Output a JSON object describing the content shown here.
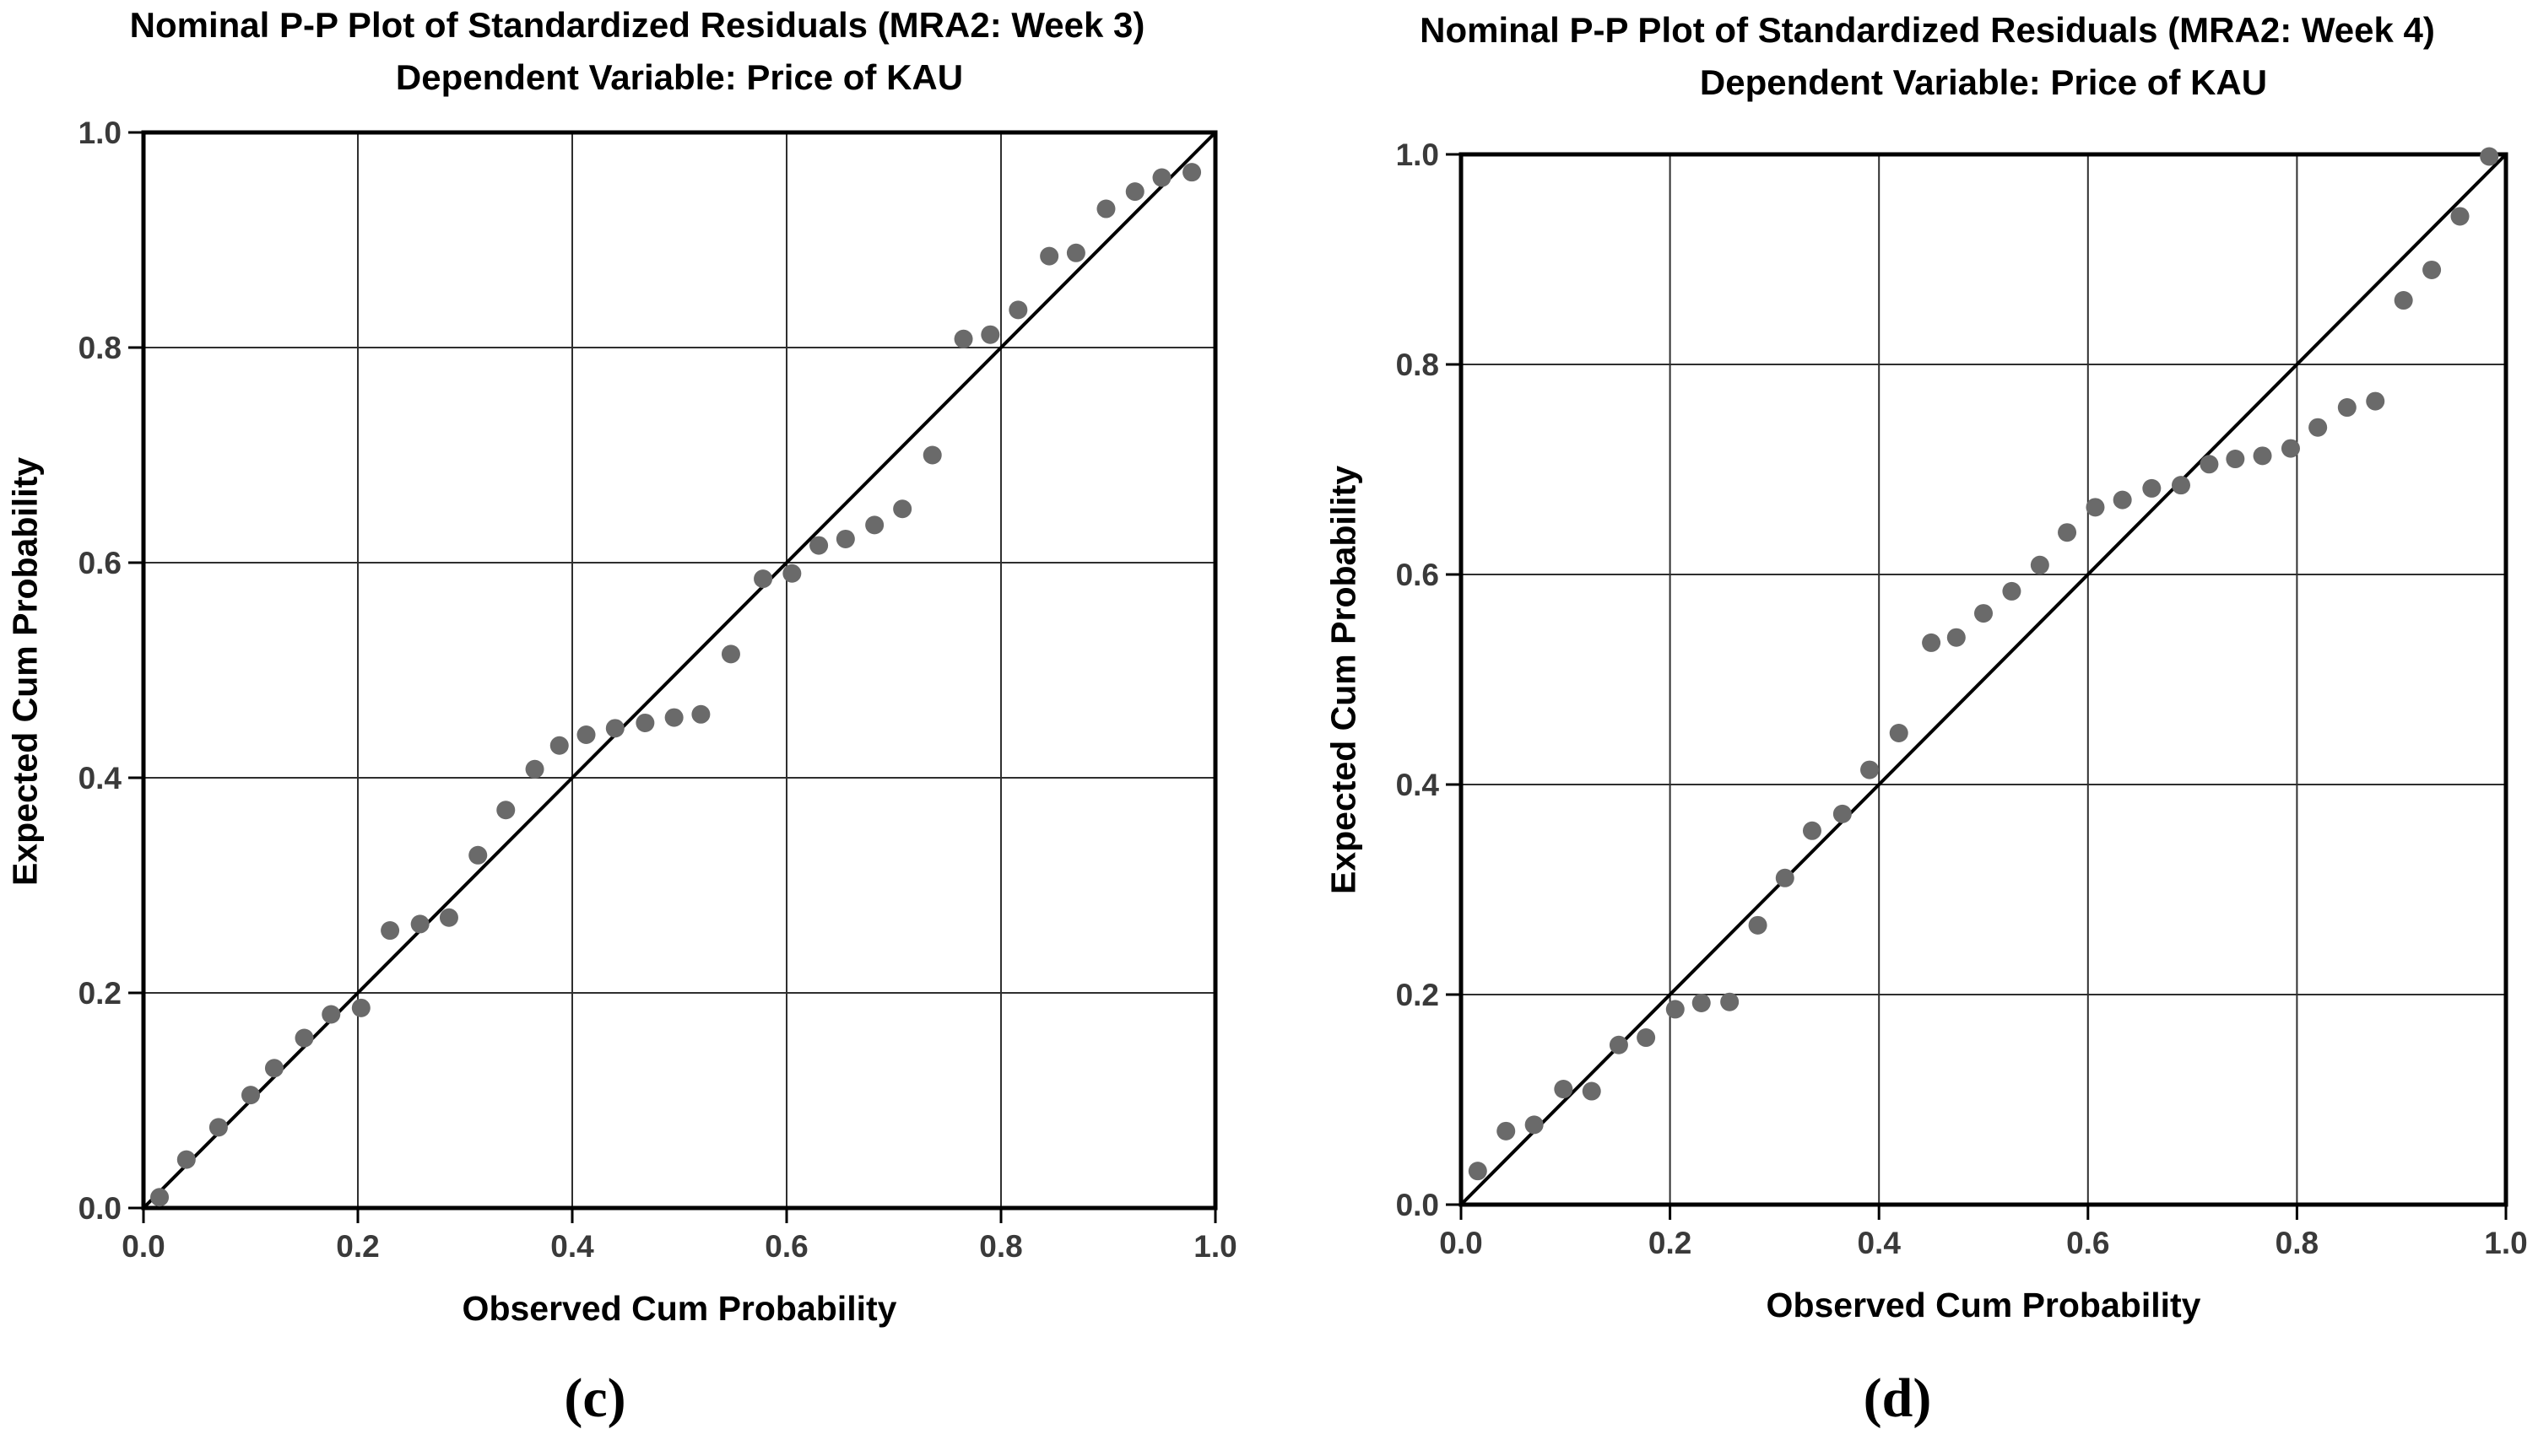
{
  "chart_data": [
    {
      "type": "scatter",
      "title": "Nominal P-P Plot of Standardized Residuals (MRA2: Week 3)",
      "subtitle": "Dependent Variable: Price of KAU",
      "xlabel": "Observed Cum Probability",
      "ylabel": "Expected Cum Probability",
      "caption": "(c)",
      "xlim": [
        0,
        1
      ],
      "ylim": [
        0,
        1
      ],
      "grid": true,
      "tick_values": [
        0,
        0.2,
        0.4,
        0.6,
        0.8,
        1.0
      ],
      "tick_labels": [
        "0.0",
        "0.2",
        "0.4",
        "0.6",
        "0.8",
        "1.0"
      ],
      "reference_line": {
        "x": [
          0,
          1
        ],
        "y": [
          0,
          1
        ]
      },
      "point_color": "#6a6a6a",
      "line_color": "#000000",
      "grid_color": "#2f2f2f",
      "axis_color": "#000000",
      "points": [
        [
          0.015,
          0.01
        ],
        [
          0.04,
          0.045
        ],
        [
          0.07,
          0.075
        ],
        [
          0.1,
          0.105
        ],
        [
          0.122,
          0.13
        ],
        [
          0.15,
          0.158
        ],
        [
          0.175,
          0.18
        ],
        [
          0.203,
          0.186
        ],
        [
          0.23,
          0.258
        ],
        [
          0.258,
          0.264
        ],
        [
          0.285,
          0.27
        ],
        [
          0.312,
          0.328
        ],
        [
          0.338,
          0.37
        ],
        [
          0.365,
          0.408
        ],
        [
          0.388,
          0.43
        ],
        [
          0.413,
          0.44
        ],
        [
          0.44,
          0.446
        ],
        [
          0.468,
          0.451
        ],
        [
          0.495,
          0.456
        ],
        [
          0.52,
          0.459
        ],
        [
          0.548,
          0.515
        ],
        [
          0.578,
          0.585
        ],
        [
          0.605,
          0.59
        ],
        [
          0.63,
          0.616
        ],
        [
          0.655,
          0.622
        ],
        [
          0.682,
          0.635
        ],
        [
          0.708,
          0.65
        ],
        [
          0.736,
          0.7
        ],
        [
          0.765,
          0.808
        ],
        [
          0.79,
          0.812
        ],
        [
          0.816,
          0.835
        ],
        [
          0.845,
          0.885
        ],
        [
          0.87,
          0.888
        ],
        [
          0.898,
          0.929
        ],
        [
          0.925,
          0.945
        ],
        [
          0.95,
          0.958
        ],
        [
          0.978,
          0.963
        ]
      ]
    },
    {
      "type": "scatter",
      "title": "Nominal P-P Plot of Standardized Residuals (MRA2: Week 4)",
      "subtitle": "Dependent Variable: Price of KAU",
      "xlabel": "Observed Cum Probability",
      "ylabel": "Expected Cum Probability",
      "caption": "(d)",
      "xlim": [
        0,
        1
      ],
      "ylim": [
        0,
        1
      ],
      "grid": true,
      "tick_values": [
        0,
        0.2,
        0.4,
        0.6,
        0.8,
        1.0
      ],
      "tick_labels": [
        "0.0",
        "0.2",
        "0.4",
        "0.6",
        "0.8",
        "1.0"
      ],
      "reference_line": {
        "x": [
          0,
          1
        ],
        "y": [
          0,
          1
        ]
      },
      "point_color": "#6a6a6a",
      "line_color": "#000000",
      "grid_color": "#2f2f2f",
      "axis_color": "#000000",
      "points": [
        [
          0.016,
          0.032
        ],
        [
          0.043,
          0.07
        ],
        [
          0.07,
          0.076
        ],
        [
          0.098,
          0.11
        ],
        [
          0.125,
          0.108
        ],
        [
          0.151,
          0.152
        ],
        [
          0.177,
          0.159
        ],
        [
          0.205,
          0.186
        ],
        [
          0.23,
          0.192
        ],
        [
          0.257,
          0.193
        ],
        [
          0.284,
          0.266
        ],
        [
          0.31,
          0.311
        ],
        [
          0.336,
          0.356
        ],
        [
          0.365,
          0.372
        ],
        [
          0.391,
          0.414
        ],
        [
          0.419,
          0.449
        ],
        [
          0.45,
          0.535
        ],
        [
          0.474,
          0.54
        ],
        [
          0.5,
          0.563
        ],
        [
          0.527,
          0.584
        ],
        [
          0.554,
          0.609
        ],
        [
          0.58,
          0.64
        ],
        [
          0.607,
          0.664
        ],
        [
          0.633,
          0.671
        ],
        [
          0.661,
          0.682
        ],
        [
          0.689,
          0.685
        ],
        [
          0.716,
          0.705
        ],
        [
          0.741,
          0.71
        ],
        [
          0.767,
          0.713
        ],
        [
          0.794,
          0.72
        ],
        [
          0.82,
          0.74
        ],
        [
          0.848,
          0.759
        ],
        [
          0.875,
          0.765
        ],
        [
          0.902,
          0.861
        ],
        [
          0.929,
          0.89
        ],
        [
          0.956,
          0.941
        ],
        [
          0.984,
          0.998
        ]
      ]
    }
  ]
}
